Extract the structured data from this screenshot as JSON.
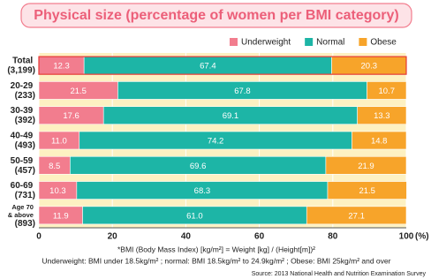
{
  "chart_data": {
    "type": "stacked-bar-horizontal",
    "title": "Physical size (percentage of women per BMI category)",
    "categories": [
      "Total\n(3,199)",
      "20-29\n(233)",
      "30-39\n(392)",
      "40-49\n(493)",
      "50-59\n(457)",
      "60-69\n(731)",
      "Age 70\n& above\n(893)"
    ],
    "series": [
      {
        "name": "Underweight",
        "color": "#f27d8e",
        "values": [
          12.3,
          21.5,
          17.6,
          11.0,
          8.5,
          10.3,
          11.9
        ],
        "value_labels": [
          "12.3",
          "21.5",
          "17.6",
          "11.0",
          "8.5",
          "10.3",
          "11.9"
        ]
      },
      {
        "name": "Normal",
        "color": "#1db5a6",
        "values": [
          67.4,
          67.8,
          69.1,
          74.2,
          69.6,
          68.3,
          61.0
        ],
        "value_labels": [
          "67.4",
          "67.8",
          "69.1",
          "74.2",
          "69.6",
          "68.3",
          "61.0"
        ]
      },
      {
        "name": "Obese",
        "color": "#f7a42a",
        "values": [
          20.3,
          10.7,
          13.3,
          14.8,
          21.9,
          21.5,
          27.1
        ],
        "value_labels": [
          "20.3",
          "10.7",
          "13.3",
          "14.8",
          "21.9",
          "21.5",
          "27.1"
        ]
      }
    ],
    "xlim": [
      0,
      100
    ],
    "xticks": [
      0,
      20,
      40,
      60,
      80,
      100
    ],
    "x_label": "(%)",
    "grid": true,
    "legend": "top-right",
    "notes": [
      "*BMI (Body Mass Index) [kg/m²] = Weight [kg] / (Height[m])²",
      "Underweight: BMI under 18.5kg/m² ; normal: BMI 18.5kg/m² to 24.9kg/m² ; Obese: BMI 25kg/m² and over"
    ],
    "source": "Source: 2013 National Health and Nutrition Examination Survey"
  }
}
